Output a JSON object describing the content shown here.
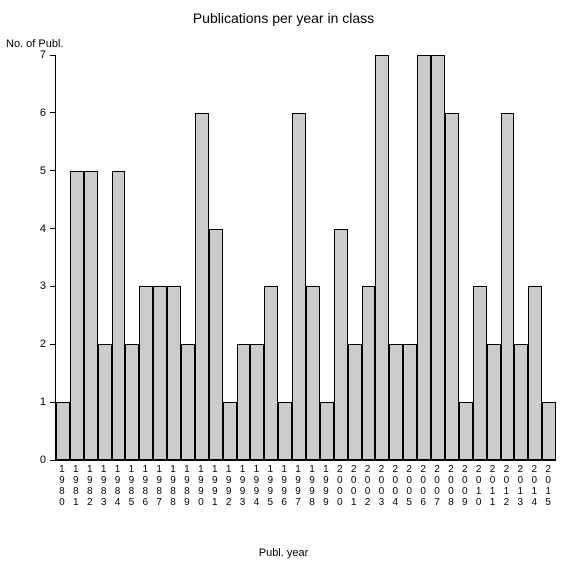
{
  "chart": {
    "type": "bar",
    "title": "Publications per year in class",
    "ylabel": "No. of Publ.",
    "xlabel": "Publ. year",
    "title_fontsize": 14,
    "label_fontsize": 11,
    "tick_fontsize": 10,
    "background_color": "#ffffff",
    "bar_fill": "#cccccc",
    "bar_border": "#000000",
    "axis_color": "#000000",
    "ylim": [
      0,
      7
    ],
    "yticks": [
      0,
      1,
      2,
      3,
      4,
      5,
      6,
      7
    ],
    "bar_width": 1.0,
    "categories": [
      "1980",
      "1981",
      "1982",
      "1983",
      "1984",
      "1985",
      "1986",
      "1987",
      "1988",
      "1989",
      "1990",
      "1991",
      "1992",
      "1993",
      "1994",
      "1995",
      "1996",
      "1997",
      "1998",
      "1999",
      "2000",
      "2001",
      "2002",
      "2003",
      "2004",
      "2005",
      "2006",
      "2007",
      "2008",
      "2009",
      "2010",
      "2011",
      "2012",
      "2013",
      "2014",
      "2015"
    ],
    "values": [
      1,
      5,
      5,
      2,
      5,
      2,
      3,
      3,
      3,
      2,
      6,
      4,
      1,
      2,
      2,
      3,
      1,
      6,
      3,
      1,
      4,
      2,
      3,
      7,
      2,
      2,
      7,
      7,
      6,
      1,
      3,
      2,
      6,
      2,
      3,
      1
    ]
  }
}
